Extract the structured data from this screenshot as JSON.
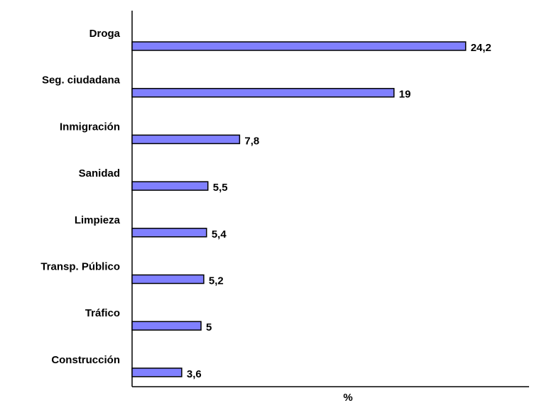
{
  "chart_data": {
    "type": "bar",
    "orientation": "horizontal",
    "x_label": "%",
    "categories": [
      "Droga",
      "Seg. ciudadana",
      "Inmigración",
      "Sanidad",
      "Limpieza",
      "Transp. Público",
      "Tráfico",
      "Construcción"
    ],
    "values": [
      24.2,
      19,
      7.8,
      5.5,
      5.4,
      5.2,
      5,
      3.6
    ],
    "value_labels": [
      "24,2",
      "19",
      "7,8",
      "5,5",
      "5,4",
      "5,2",
      "5",
      "3,6"
    ],
    "color": "#8080ff",
    "xlim": [
      0,
      28.8
    ]
  }
}
